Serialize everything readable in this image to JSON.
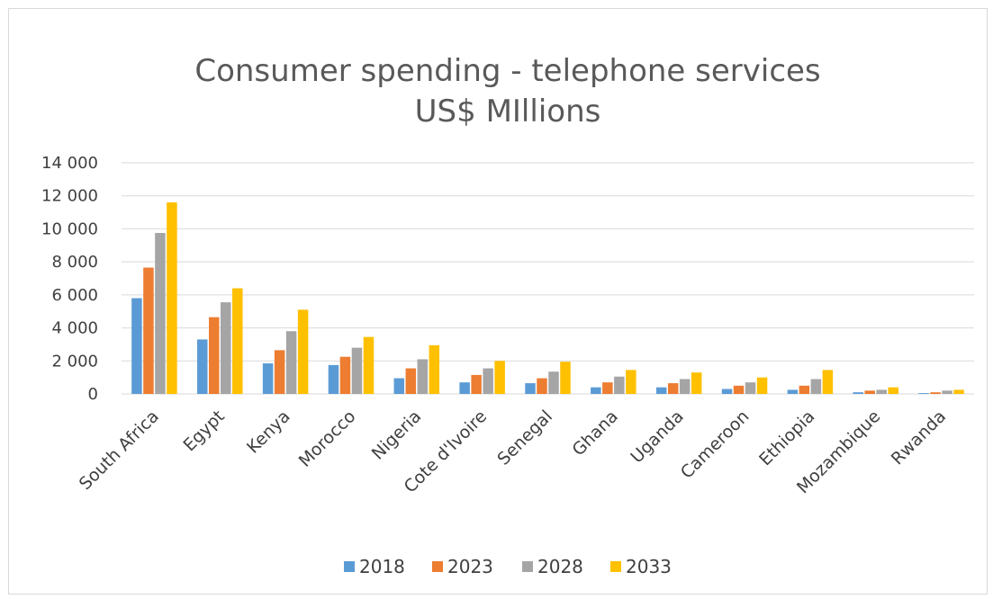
{
  "chart_data": {
    "type": "bar",
    "title": [
      "Consumer spending - telephone services",
      "US$ MIllions"
    ],
    "categories": [
      "South Africa",
      "Egypt",
      "Kenya",
      "Morocco",
      "Nigeria",
      "Cote d'Ivoire",
      "Senegal",
      "Ghana",
      "Uganda",
      "Cameroon",
      "Ethiopia",
      "Mozambique",
      "Rwanda"
    ],
    "series": [
      {
        "name": "2018",
        "color": "#5b9bd5",
        "values": [
          5800,
          3300,
          1850,
          1750,
          950,
          700,
          650,
          400,
          400,
          300,
          250,
          100,
          50
        ]
      },
      {
        "name": "2023",
        "color": "#ed7d31",
        "values": [
          7650,
          4650,
          2650,
          2250,
          1550,
          1150,
          950,
          700,
          650,
          500,
          500,
          200,
          100
        ]
      },
      {
        "name": "2028",
        "color": "#a5a5a5",
        "values": [
          9750,
          5550,
          3800,
          2800,
          2100,
          1550,
          1350,
          1050,
          900,
          700,
          900,
          250,
          200
        ]
      },
      {
        "name": "2033",
        "color": "#ffc000",
        "values": [
          11600,
          6400,
          5100,
          3450,
          2950,
          2000,
          1950,
          1450,
          1300,
          1000,
          1450,
          400,
          250
        ]
      }
    ],
    "yticks": [
      "0",
      "2 000",
      "4 000",
      "6 000",
      "8 000",
      "10 000",
      "12 000",
      "14 000"
    ],
    "ylim": [
      0,
      14000
    ],
    "grid": true,
    "legend": "bottom"
  }
}
